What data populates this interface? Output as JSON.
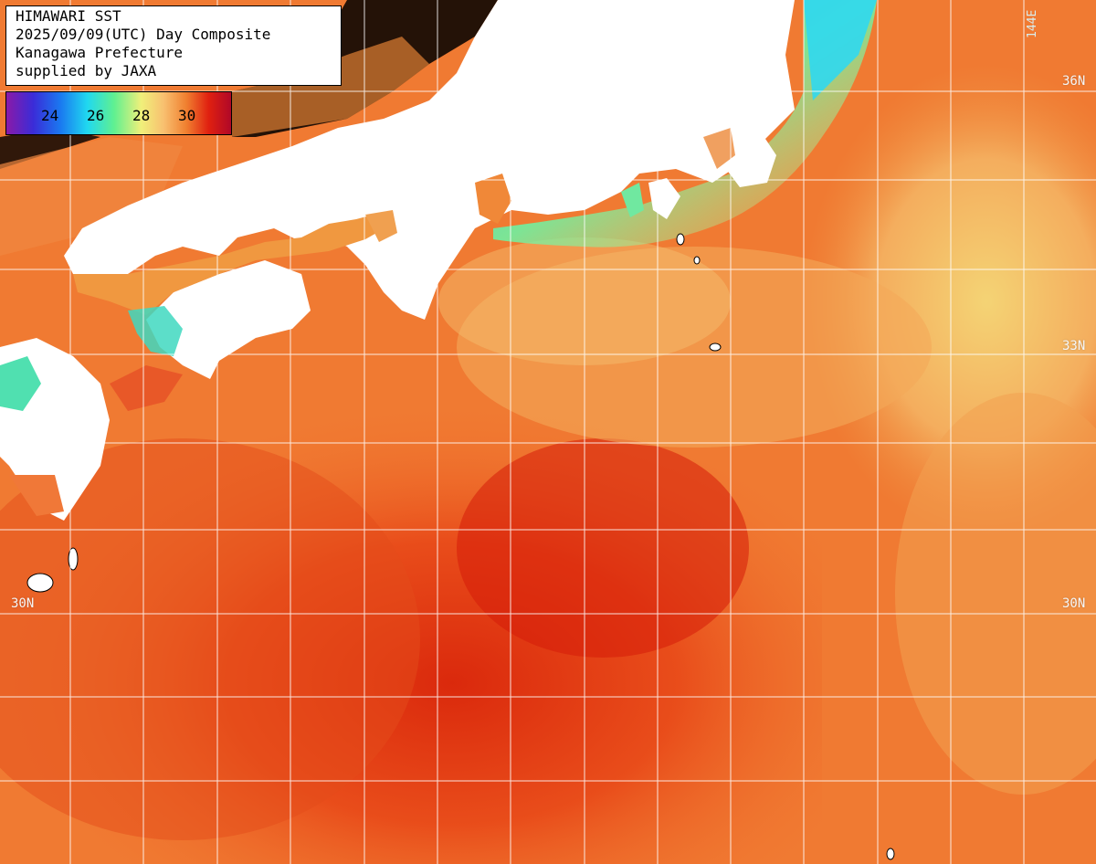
{
  "title": {
    "line1": "HIMAWARI SST",
    "line2": "2025/09/09(UTC) Day Composite",
    "line3": "Kanagawa Prefecture",
    "line4": "supplied by JAXA"
  },
  "legend": {
    "ticks": [
      "24",
      "26",
      "28",
      "30"
    ]
  },
  "grid_labels": {
    "lat_36_right": "36N",
    "lat_33_right": "33N",
    "lat_30_left": "30N",
    "lat_30_right": "30N",
    "lon_top": "144E"
  },
  "colors": {
    "land": "#ffffff",
    "no_data": "#000000",
    "warm_sea": "#f07830",
    "hot_sea": "#e03010",
    "cool_coast": "#60e0a0",
    "gridline": "#ffffff"
  }
}
